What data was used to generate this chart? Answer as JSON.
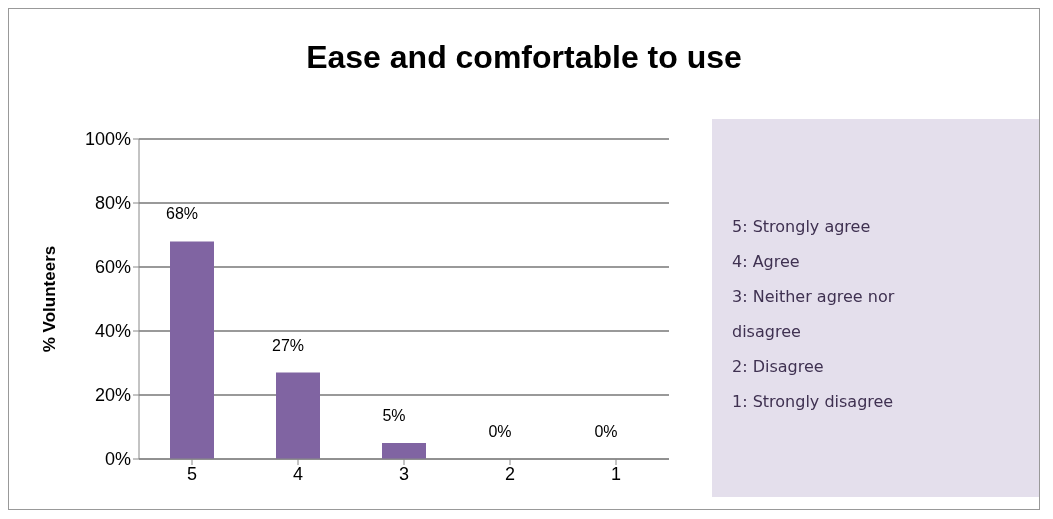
{
  "chart_data": {
    "type": "bar",
    "title": "Ease and comfortable to use",
    "ylabel": "% Volunteers",
    "categories": [
      "5",
      "4",
      "3",
      "2",
      "1"
    ],
    "values": [
      68,
      27,
      5,
      0,
      0
    ],
    "color": "#8064a2",
    "value_labels": [
      "68%",
      "27%",
      "5%",
      "0%",
      "0%"
    ],
    "ylim": [
      0,
      100
    ],
    "yticks": [
      {
        "value": 0,
        "label": "0%"
      },
      {
        "value": 20,
        "label": "20%"
      },
      {
        "value": 40,
        "label": "40%"
      },
      {
        "value": 60,
        "label": "60%"
      },
      {
        "value": 80,
        "label": "80%"
      },
      {
        "value": 100,
        "label": "100%"
      }
    ],
    "grid": "y",
    "legend": false,
    "annotations": [
      "5: Strongly agree",
      "4: Agree",
      "3: Neither agree nor disagree",
      "2: Disagree",
      "1: Strongly disagree"
    ]
  }
}
